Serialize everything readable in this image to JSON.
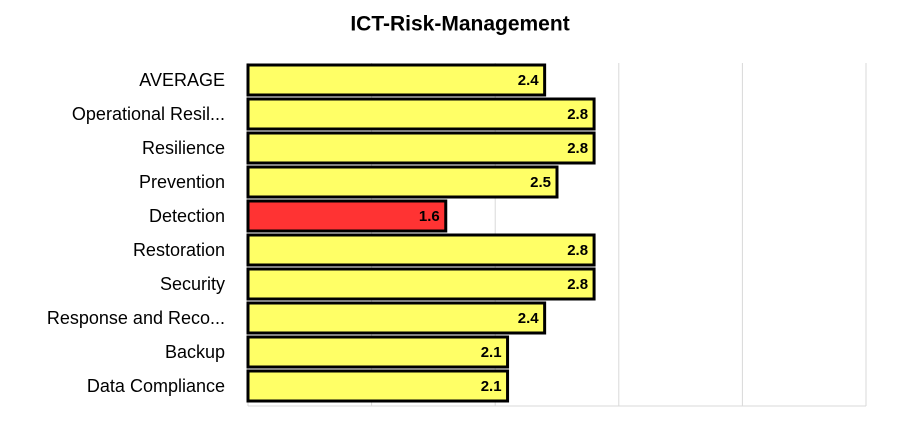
{
  "chart_data": {
    "type": "bar",
    "orientation": "horizontal",
    "title": "ICT-Risk-Management",
    "categories": [
      "AVERAGE",
      "Operational Resil...",
      "Resilience",
      "Prevention",
      "Detection",
      "Restoration",
      "Security",
      "Response and Reco...",
      "Backup",
      "Data Compliance"
    ],
    "values": [
      2.4,
      2.8,
      2.8,
      2.5,
      1.6,
      2.8,
      2.8,
      2.4,
      2.1,
      2.1
    ],
    "colors": [
      "#ffff66",
      "#ffff66",
      "#ffff66",
      "#ffff66",
      "#ff3333",
      "#ffff66",
      "#ffff66",
      "#ffff66",
      "#ffff66",
      "#ffff66"
    ],
    "xlim": [
      0,
      5
    ],
    "xticks": [
      0,
      1,
      2,
      3,
      4,
      5
    ],
    "tick_labels": false,
    "grid": true
  }
}
